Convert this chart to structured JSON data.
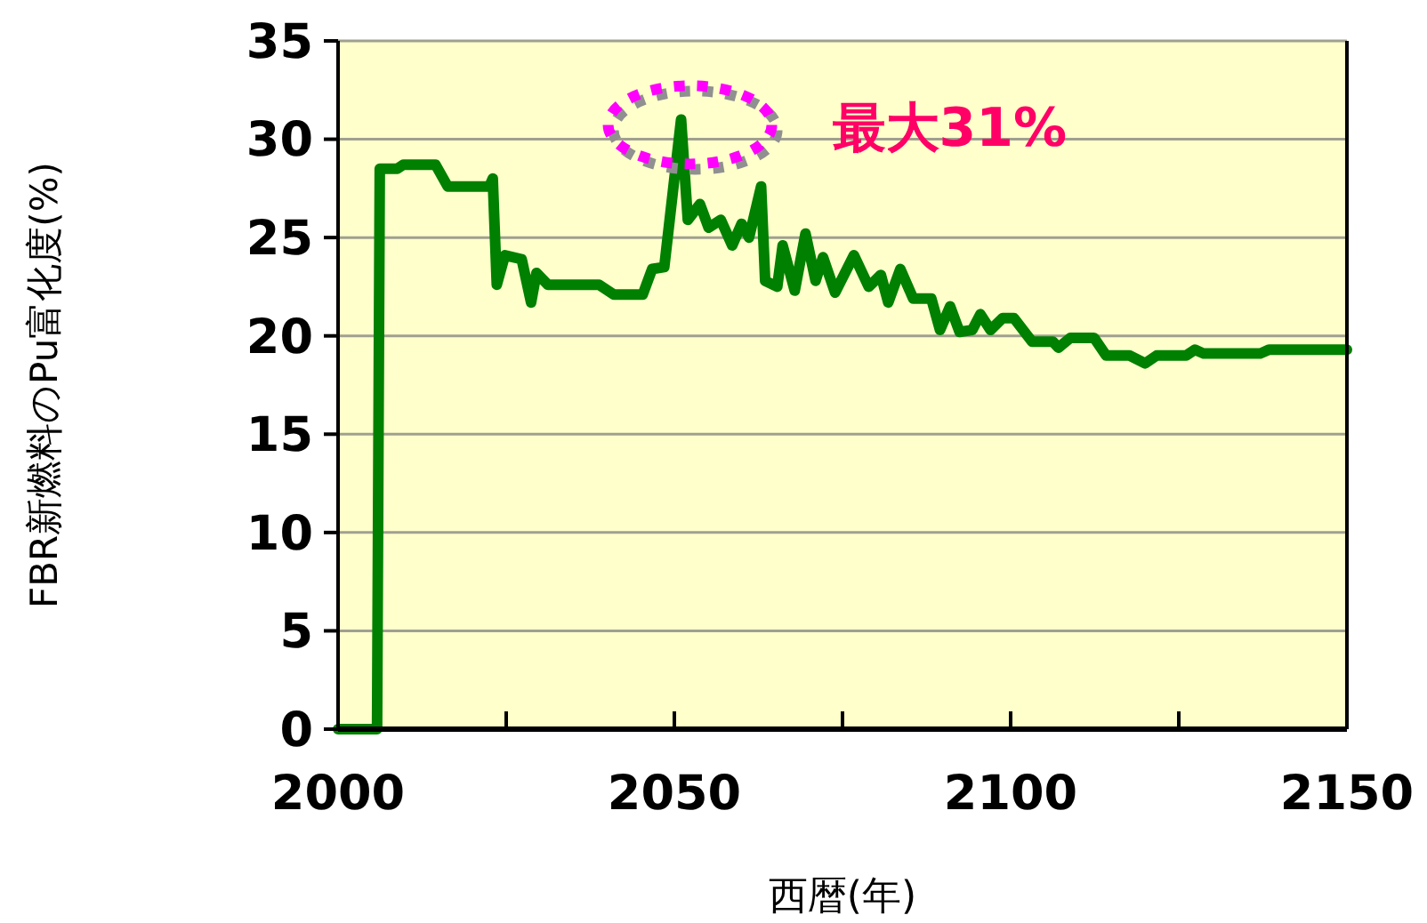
{
  "chart_data": {
    "type": "line",
    "xlabel": "西暦(年)",
    "ylabel": "FBR新燃料のPu富化度(%)",
    "annotations": [
      {
        "text": "最大31%",
        "x": 2051,
        "y": 31
      }
    ],
    "xlim": [
      2000,
      2150
    ],
    "xticks": [
      2000,
      {
        "value": 2025,
        "label": null
      },
      2050,
      {
        "value": 2075,
        "label": null
      },
      2100,
      {
        "value": 2125,
        "label": null
      },
      2150
    ],
    "ylim": [
      0,
      35
    ],
    "yticks": [
      0,
      5,
      10,
      15,
      20,
      25,
      30,
      35
    ],
    "grid": "y",
    "marker": "none",
    "line_style": "solid",
    "series": [
      {
        "color": "#008000",
        "x": [
          2000,
          2005.8,
          2006.2,
          2008.8,
          2009.7,
          2014.5,
          2016.3,
          2022.5,
          2023,
          2023.6,
          2024.8,
          2027.3,
          2028.7,
          2029.5,
          2031.2,
          2038.8,
          2041,
          2045.3,
          2046.7,
          2048.5,
          2049.8,
          2051,
          2052,
          2053.8,
          2055.1,
          2056.9,
          2058.6,
          2060,
          2061.1,
          2062.9,
          2063.5,
          2065.3,
          2066.1,
          2067.9,
          2069.5,
          2071,
          2072.1,
          2073.9,
          2076.7,
          2078.9,
          2080.7,
          2081.8,
          2083.6,
          2085.5,
          2088.2,
          2089.5,
          2091,
          2092.4,
          2094.3,
          2095.5,
          2097,
          2098.8,
          2100.5,
          2103.2,
          2106.3,
          2107.1,
          2108.9,
          2112.4,
          2114.2,
          2117.7,
          2120,
          2121.7,
          2126.1,
          2127.4,
          2128.7,
          2137.1,
          2138.4,
          2150
        ],
        "values": [
          0,
          0,
          28.5,
          28.5,
          28.7,
          28.7,
          27.6,
          27.6,
          28,
          22.6,
          24.1,
          23.9,
          21.7,
          23.2,
          22.6,
          22.6,
          22.1,
          22.1,
          23.4,
          23.5,
          27.4,
          31,
          25.9,
          26.7,
          25.5,
          25.9,
          24.6,
          25.7,
          25,
          27.6,
          22.8,
          22.5,
          24.6,
          22.3,
          25.2,
          22.8,
          24,
          22.2,
          24.1,
          22.5,
          23.1,
          21.7,
          23.4,
          21.9,
          21.9,
          20.3,
          21.5,
          20.2,
          20.3,
          21.1,
          20.3,
          20.9,
          20.9,
          19.7,
          19.7,
          19.4,
          19.9,
          19.9,
          19,
          19,
          18.6,
          19,
          19,
          19.3,
          19.1,
          19.1,
          19.3,
          19.3
        ]
      }
    ]
  }
}
